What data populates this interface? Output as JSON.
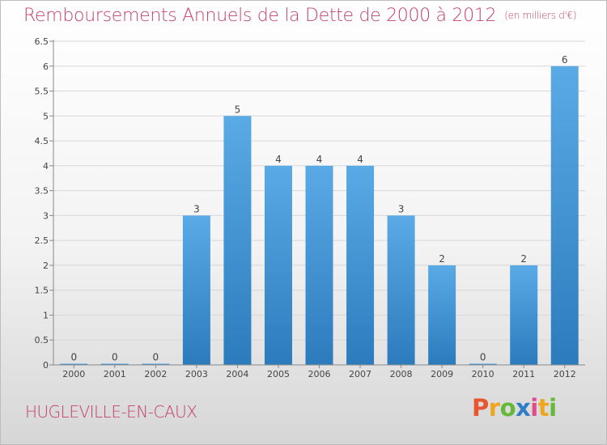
{
  "header": {
    "title": "Remboursements Annuels de la Dette de 2000 à 2012",
    "unit": "(en milliers d'€)"
  },
  "footer": {
    "city": "HUGLEVILLE-EN-CAUX",
    "brand": [
      "P",
      "r",
      "o",
      "x",
      "i",
      "t",
      "i"
    ],
    "brand_colors": [
      "#e8562e",
      "#f0a51e",
      "#66b83a",
      "#2f7fc8",
      "#e14a8b",
      "#f0a51e",
      "#66b83a"
    ]
  },
  "colors": {
    "bar": "#5aaae6",
    "bar_dark": "#2c7bbd",
    "axis": "#888888",
    "grid": "#d7d7d7"
  },
  "chart_data": {
    "type": "bar",
    "title": "Remboursements Annuels de la Dette de 2000 à 2012",
    "categories": [
      "2000",
      "2001",
      "2002",
      "2003",
      "2004",
      "2005",
      "2006",
      "2007",
      "2008",
      "2009",
      "2010",
      "2011",
      "2012"
    ],
    "values": [
      0,
      0,
      0,
      3,
      5,
      4,
      4,
      4,
      3,
      2,
      0,
      2,
      6
    ],
    "data_labels": [
      "0",
      "0",
      "0",
      "3",
      "5",
      "4",
      "4",
      "4",
      "3",
      "2",
      "0",
      "2",
      "6"
    ],
    "ylim": [
      0,
      6.5
    ],
    "yticks": [
      "0",
      "0.5",
      "1",
      "1.5",
      "2",
      "2.5",
      "3",
      "3.5",
      "4",
      "4.5",
      "5",
      "5.5",
      "6",
      "6.5"
    ],
    "grid": true
  }
}
